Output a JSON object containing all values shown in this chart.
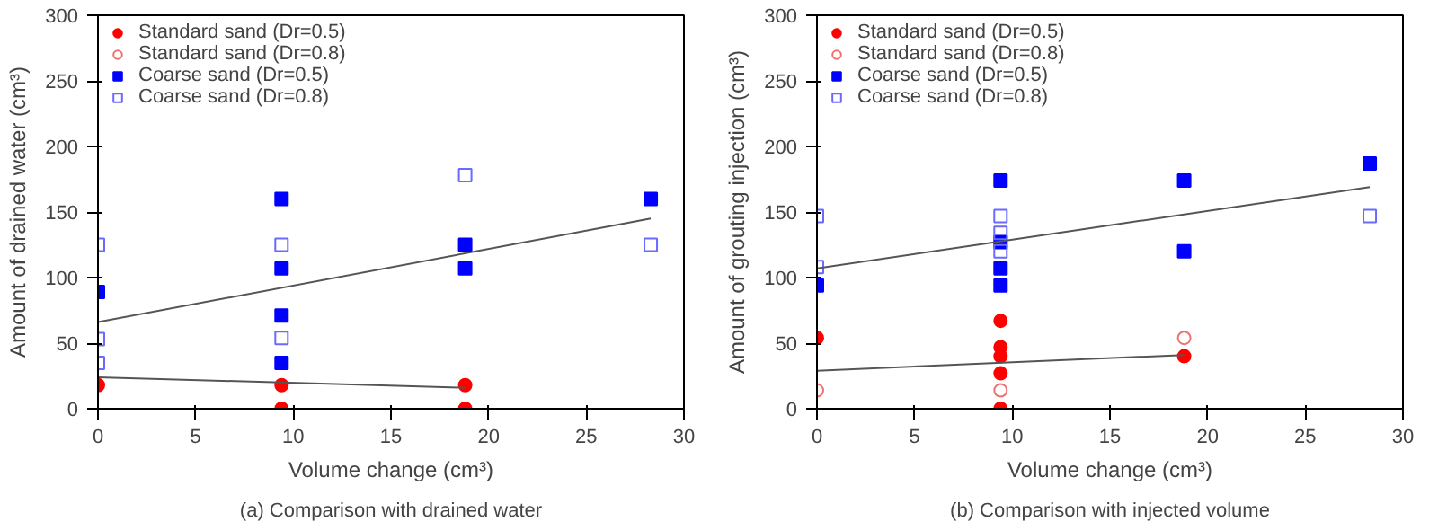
{
  "chart_data": [
    {
      "type": "scatter",
      "xlabel": "Volume change (cm³)",
      "ylabel": "Amount of drained water (cm³)",
      "annotations": [
        "(a) Comparison with drained water"
      ],
      "xlim": [
        0,
        30
      ],
      "ylim": [
        0,
        300
      ],
      "xticks": [
        0,
        5,
        10,
        15,
        20,
        25,
        30
      ],
      "yticks": [
        0,
        50,
        100,
        150,
        200,
        250,
        300
      ],
      "grid": false,
      "legend": "top left",
      "series": [
        {
          "name": "Standard sand (Dr=0.5)",
          "color": "#ff0000",
          "marker": "circle",
          "x": [
            0,
            9.4,
            9.4,
            18.8,
            18.8
          ],
          "values": [
            18,
            18,
            0,
            18,
            0
          ]
        },
        {
          "name": "Standard sand (Dr=0.8)",
          "color": "#f07070",
          "marker": "circle"
        },
        {
          "name": "Coarse sand (Dr=0.5)",
          "color": "#0000ff",
          "marker": "square",
          "x": [
            0,
            9.4,
            9.4,
            9.4,
            9.4,
            18.8,
            18.8,
            28.3
          ],
          "values": [
            89,
            160,
            107,
            71,
            35,
            125,
            107,
            160
          ]
        },
        {
          "name": "Coarse sand (Dr=0.8)",
          "color": "#6a6aff",
          "marker": "square",
          "x": [
            0,
            0,
            0,
            9.4,
            9.4,
            18.8,
            28.3
          ],
          "values": [
            125,
            53,
            35,
            125,
            54,
            178,
            125
          ]
        },
        {
          "type": "line",
          "color": "#555555",
          "x": [
            0,
            28.3
          ],
          "values": [
            66,
            145
          ]
        },
        {
          "type": "line",
          "color": "#555555",
          "x": [
            0,
            18.8
          ],
          "values": [
            24,
            16
          ]
        }
      ]
    },
    {
      "type": "scatter",
      "xlabel": "Volume change (cm³)",
      "ylabel": "Amount of grouting injection (cm³)",
      "annotations": [
        "(b) Comparison with injected volume"
      ],
      "xlim": [
        0,
        30
      ],
      "ylim": [
        0,
        300
      ],
      "xticks": [
        0,
        5,
        10,
        15,
        20,
        25,
        30
      ],
      "yticks": [
        0,
        50,
        100,
        150,
        200,
        250,
        300
      ],
      "grid": false,
      "legend": "top left",
      "series": [
        {
          "name": "Standard sand (Dr=0.5)",
          "color": "#ff0000",
          "marker": "circle",
          "x": [
            0,
            9.4,
            9.4,
            9.4,
            9.4,
            9.4,
            18.8
          ],
          "values": [
            54,
            67,
            47,
            40,
            27,
            0,
            40
          ]
        },
        {
          "name": "Standard sand (Dr=0.8)",
          "color": "#f07070",
          "marker": "circle",
          "x": [
            0,
            9.4,
            18.8
          ],
          "values": [
            14,
            14,
            54
          ]
        },
        {
          "name": "Coarse sand (Dr=0.5)",
          "color": "#0000ff",
          "marker": "square",
          "x": [
            0,
            9.4,
            9.4,
            9.4,
            9.4,
            18.8,
            18.8,
            28.3
          ],
          "values": [
            94,
            174,
            127,
            107,
            94,
            174,
            120,
            187
          ]
        },
        {
          "name": "Coarse sand (Dr=0.8)",
          "color": "#6a6aff",
          "marker": "square",
          "x": [
            0,
            0,
            9.4,
            9.4,
            9.4,
            28.3
          ],
          "values": [
            147,
            108,
            147,
            134,
            120,
            147
          ]
        },
        {
          "type": "line",
          "color": "#555555",
          "x": [
            0,
            28.3
          ],
          "values": [
            107,
            169
          ]
        },
        {
          "type": "line",
          "color": "#555555",
          "x": [
            0,
            18.8
          ],
          "values": [
            29,
            41
          ]
        }
      ]
    }
  ]
}
